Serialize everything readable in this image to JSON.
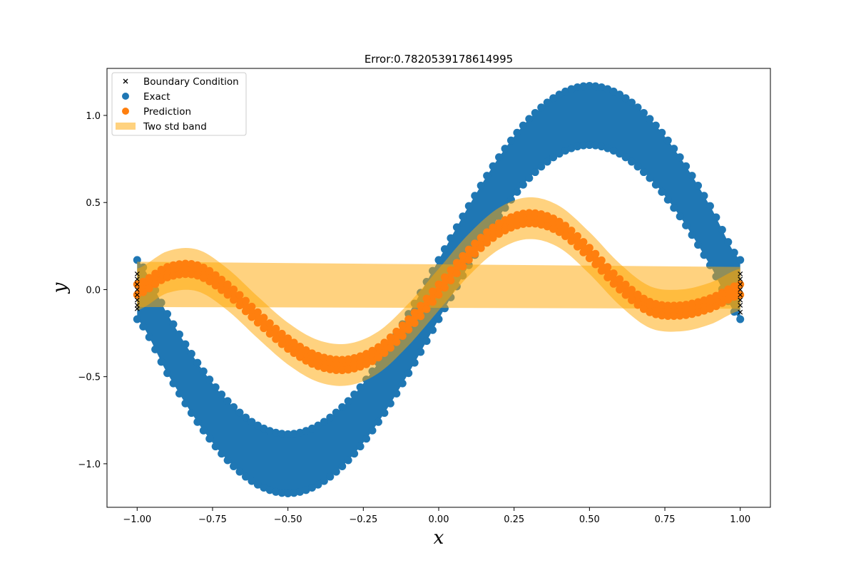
{
  "chart_data": {
    "type": "scatter",
    "title": "Error:0.7820539178614995",
    "xlabel": "x",
    "ylabel": "y",
    "xlim": [
      -1.1,
      1.1
    ],
    "ylim": [
      -1.25,
      1.27
    ],
    "x_ticks": [
      -1.0,
      -0.75,
      -0.5,
      -0.25,
      0.0,
      0.25,
      0.5,
      0.75,
      1.0
    ],
    "x_tick_labels": [
      "−1.00",
      "−0.75",
      "−0.50",
      "−0.25",
      "0.00",
      "0.25",
      "0.50",
      "0.75",
      "1.00"
    ],
    "y_ticks": [
      -1.0,
      -0.5,
      0.0,
      0.5,
      1.0
    ],
    "y_tick_labels": [
      "−1.0",
      "−0.5",
      "0.0",
      "0.5",
      "1.0"
    ],
    "grid": false,
    "legend_position": "top-left",
    "legend": [
      "Boundary Condition",
      "Exact",
      "Prediction",
      "Two std band"
    ],
    "colors": {
      "boundary": "#000000",
      "exact": "#1f77b4",
      "prediction": "#ff7f0e",
      "band": "#ffa500"
    },
    "series": [
      {
        "name": "Boundary Condition",
        "marker": "x",
        "points": [
          [
            -1.0,
            0.09
          ],
          [
            -1.0,
            0.06
          ],
          [
            -1.0,
            0.03
          ],
          [
            -1.0,
            0.0
          ],
          [
            -1.0,
            -0.03
          ],
          [
            -1.0,
            -0.06
          ],
          [
            -1.0,
            -0.09
          ],
          [
            -1.0,
            -0.11
          ],
          [
            1.0,
            0.09
          ],
          [
            1.0,
            0.06
          ],
          [
            1.0,
            0.03
          ],
          [
            1.0,
            0.0
          ],
          [
            1.0,
            -0.03
          ],
          [
            1.0,
            -0.06
          ],
          [
            1.0,
            -0.09
          ],
          [
            1.0,
            -0.13
          ]
        ]
      },
      {
        "name": "Exact",
        "marker": "o",
        "x": [
          -1.0,
          -0.9,
          -0.8,
          -0.7,
          -0.6,
          -0.5,
          -0.4,
          -0.3,
          -0.2,
          -0.1,
          0.0,
          0.1,
          0.2,
          0.3,
          0.4,
          0.5,
          0.6,
          0.7,
          0.8,
          0.9,
          1.0
        ],
        "y_center": [
          0.0,
          -0.31,
          -0.59,
          -0.81,
          -0.95,
          -1.0,
          -0.95,
          -0.81,
          -0.59,
          -0.31,
          0.0,
          0.31,
          0.59,
          0.81,
          0.95,
          1.0,
          0.95,
          0.81,
          0.59,
          0.31,
          0.0
        ],
        "spread": 0.17
      },
      {
        "name": "Prediction",
        "marker": "o",
        "x": [
          -1.0,
          -0.9,
          -0.8,
          -0.7,
          -0.6,
          -0.5,
          -0.4,
          -0.3,
          -0.2,
          -0.1,
          0.0,
          0.1,
          0.2,
          0.3,
          0.4,
          0.5,
          0.6,
          0.7,
          0.8,
          0.9,
          1.0
        ],
        "y": [
          0.0,
          0.1,
          0.11,
          0.0,
          -0.16,
          -0.31,
          -0.41,
          -0.43,
          -0.36,
          -0.2,
          0.0,
          0.2,
          0.35,
          0.41,
          0.36,
          0.21,
          0.03,
          -0.1,
          -0.12,
          -0.08,
          0.0
        ],
        "spread": 0.03
      },
      {
        "name": "Two std band",
        "x": [
          -1.0,
          -0.9,
          -0.8,
          -0.7,
          -0.6,
          -0.5,
          -0.4,
          -0.3,
          -0.2,
          -0.1,
          0.0,
          0.1,
          0.2,
          0.3,
          0.4,
          0.5,
          0.6,
          0.7,
          0.8,
          0.9,
          1.0
        ],
        "center": [
          0.0,
          0.1,
          0.11,
          0.0,
          -0.16,
          -0.31,
          -0.41,
          -0.43,
          -0.36,
          -0.2,
          0.0,
          0.2,
          0.35,
          0.41,
          0.36,
          0.21,
          0.03,
          -0.1,
          -0.12,
          -0.08,
          0.0
        ],
        "half_width": 0.12,
        "flat_band": {
          "x": [
            -1.0,
            1.0
          ],
          "y_low": [
            -0.1,
            -0.11
          ],
          "y_high": [
            0.16,
            0.13
          ]
        }
      }
    ]
  }
}
